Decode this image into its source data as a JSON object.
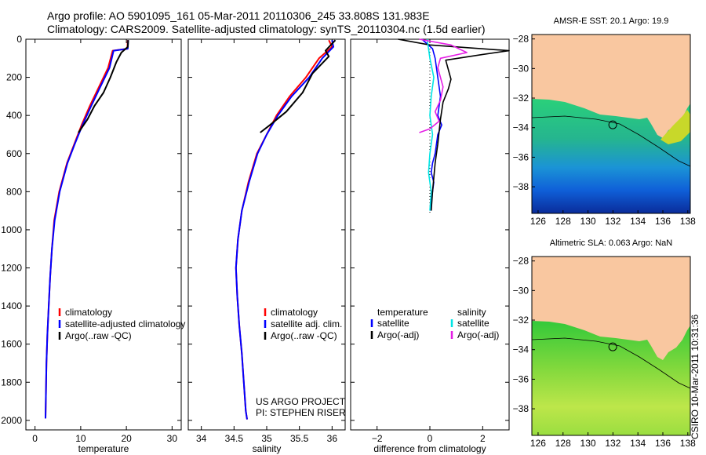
{
  "header": {
    "line1": "Argo profile: AO 5901095_161 05-Mar-2011 20110306_245 33.808S 131.983E",
    "line2": "Climatology: CARS2009. Satellite-adjusted climatology: synTS_20110304.nc (1.5d earlier)"
  },
  "stamp": "CSIRO 10-Mar-2011 10:31:36",
  "colors": {
    "climatology": "#ff0000",
    "satellite": "#0000ff",
    "argo": "#000000",
    "sal_satellite": "#00e5e5",
    "sal_argo": "#e51ee5",
    "land": "#f9c7a0"
  },
  "chart_data": [
    {
      "type": "line",
      "xlabel": "temperature",
      "ylabel": "",
      "xlim": [
        -2,
        32
      ],
      "ylim": [
        2050,
        0
      ],
      "xticks": [
        0,
        10,
        20,
        30
      ],
      "yticks": [
        0,
        200,
        400,
        600,
        800,
        1000,
        1200,
        1400,
        1600,
        1800,
        2000
      ],
      "legend": {
        "placement": "lower-middle",
        "entries": [
          "climatology",
          "satellite-adjusted climatology",
          "Argo(..raw -QC)"
        ]
      },
      "series": [
        {
          "name": "climatology",
          "color": "#ff0000",
          "x": [
            20.3,
            20.2,
            17.0,
            16.0,
            14.0,
            12.0,
            10.2,
            8.6,
            7.0,
            5.3,
            4.2,
            3.7,
            3.3,
            3.0,
            2.7,
            2.5,
            2.4,
            2.3
          ],
          "y": [
            5,
            50,
            60,
            150,
            250,
            350,
            450,
            550,
            650,
            800,
            950,
            1100,
            1250,
            1400,
            1550,
            1700,
            1850,
            1990
          ]
        },
        {
          "name": "satellite-adjusted climatology",
          "color": "#0000ff",
          "x": [
            20.4,
            20.3,
            17.2,
            16.3,
            14.3,
            12.3,
            10.4,
            8.7,
            7.1,
            5.4,
            4.3,
            3.7,
            3.3,
            3.0,
            2.7,
            2.5,
            2.4,
            2.3
          ],
          "y": [
            5,
            50,
            60,
            150,
            250,
            350,
            450,
            550,
            650,
            800,
            950,
            1100,
            1250,
            1400,
            1550,
            1700,
            1850,
            1990
          ]
        },
        {
          "name": "Argo(..raw -QC)",
          "color": "#000000",
          "x": [
            20.4,
            20.3,
            18.9,
            17.8,
            16.5,
            15.0,
            13.0,
            11.5,
            9.5
          ],
          "y": [
            5,
            40,
            70,
            120,
            200,
            280,
            350,
            420,
            490
          ]
        }
      ]
    },
    {
      "type": "line",
      "xlabel": "salinity",
      "ylabel": "",
      "xlim": [
        33.8,
        36.2
      ],
      "ylim": [
        2050,
        0
      ],
      "xticks": [
        34,
        34.5,
        35,
        35.5,
        36
      ],
      "xtick_labels": [
        "34",
        "34.5",
        "35",
        "35.5",
        "36"
      ],
      "legend": {
        "placement": "lower-right",
        "entries": [
          "climatology",
          "satellite adj. clim.",
          "Argo(..raw -QC)"
        ]
      },
      "annotation": [
        "US ARGO PROJECT",
        "PI: STEPHEN RISER"
      ],
      "series": [
        {
          "name": "climatology",
          "color": "#ff0000",
          "x": [
            35.95,
            36.0,
            35.8,
            35.6,
            35.35,
            35.15,
            35.0,
            34.85,
            34.72,
            34.62,
            34.56,
            34.53,
            34.55,
            34.58,
            34.62,
            34.65,
            34.68,
            34.7
          ],
          "y": [
            5,
            40,
            100,
            200,
            300,
            400,
            500,
            600,
            750,
            900,
            1050,
            1200,
            1350,
            1500,
            1650,
            1800,
            1950,
            1995
          ]
        },
        {
          "name": "satellite adj. clim.",
          "color": "#0000ff",
          "x": [
            36.0,
            36.02,
            35.85,
            35.65,
            35.38,
            35.17,
            35.0,
            34.86,
            34.73,
            34.62,
            34.56,
            34.53,
            34.55,
            34.58,
            34.62,
            34.65,
            34.68,
            34.7
          ],
          "y": [
            5,
            40,
            100,
            200,
            300,
            400,
            500,
            600,
            750,
            900,
            1050,
            1200,
            1350,
            1500,
            1650,
            1800,
            1950,
            1995
          ]
        },
        {
          "name": "Argo(..raw -QC)",
          "color": "#000000",
          "x": [
            36.05,
            35.9,
            35.95,
            35.7,
            35.55,
            35.3,
            35.05,
            34.9
          ],
          "y": [
            5,
            60,
            90,
            180,
            280,
            380,
            450,
            490
          ]
        }
      ]
    },
    {
      "type": "line",
      "xlabel": "difference from climatology",
      "ylabel": "",
      "xlim": [
        -3,
        3
      ],
      "ylim": [
        2050,
        0
      ],
      "xticks": [
        -2,
        0,
        2
      ],
      "legend": {
        "placement": "lower-middle",
        "headers": [
          "temperature",
          "salinity"
        ],
        "entries": [
          "satellite",
          "Argo(-adj)",
          "satellite",
          "Argo(-adj)"
        ]
      },
      "series": [
        {
          "name": "temperature satellite",
          "color": "#0000ff",
          "x": [
            -0.3,
            0.1,
            0.2,
            0.3,
            0.4,
            0.3,
            0.45,
            0.3,
            0.2,
            0.1,
            0.05,
            0.15,
            0.1,
            0.05,
            0.02
          ],
          "y": [
            0,
            50,
            100,
            200,
            300,
            400,
            450,
            500,
            600,
            650,
            700,
            750,
            800,
            850,
            900
          ]
        },
        {
          "name": "temperature Argo(-adj)",
          "color": "#000000",
          "x": [
            -1.2,
            0.0,
            3.0,
            2.0,
            0.6,
            0.8,
            0.7,
            0.5,
            0.4,
            0.3,
            0.2,
            0.1,
            0.05
          ],
          "y": [
            0,
            30,
            60,
            80,
            110,
            210,
            260,
            330,
            420,
            550,
            650,
            800,
            900
          ]
        },
        {
          "name": "salinity satellite",
          "color": "#00e5e5",
          "x": [
            -0.1,
            -0.05,
            0.0,
            0.15,
            0.05,
            0.0,
            0.1,
            0.0,
            -0.05,
            0.05,
            0.0
          ],
          "y": [
            0,
            50,
            100,
            200,
            300,
            400,
            500,
            600,
            700,
            800,
            900
          ]
        },
        {
          "name": "salinity Argo(-adj)",
          "color": "#e51ee5",
          "x": [
            -0.4,
            0.8,
            1.4,
            0.4,
            0.3,
            0.5,
            0.4,
            0.2,
            0.35,
            0.0,
            -0.4
          ],
          "y": [
            0,
            30,
            70,
            100,
            150,
            250,
            320,
            380,
            430,
            470,
            490
          ]
        }
      ]
    },
    {
      "type": "heatmap",
      "title": "AMSR-E SST: 20.1 Argo: 19.9",
      "xlim": [
        125.5,
        138.2
      ],
      "ylim": [
        -39.8,
        -27.7
      ],
      "xticks": [
        126,
        128,
        130,
        132,
        134,
        136,
        138
      ],
      "yticks": [
        -28,
        -30,
        -32,
        -34,
        -36,
        -38
      ],
      "marker": {
        "lon": 131.983,
        "lat": -33.808
      }
    },
    {
      "type": "heatmap",
      "title": "Altimetric SLA: 0.063 Argo: NaN",
      "xlim": [
        125.5,
        138.2
      ],
      "ylim": [
        -39.8,
        -27.7
      ],
      "xticks": [
        126,
        128,
        130,
        132,
        134,
        136,
        138
      ],
      "yticks": [
        -28,
        -30,
        -32,
        -34,
        -36,
        -38
      ],
      "marker": {
        "lon": 131.983,
        "lat": -33.808
      }
    }
  ]
}
